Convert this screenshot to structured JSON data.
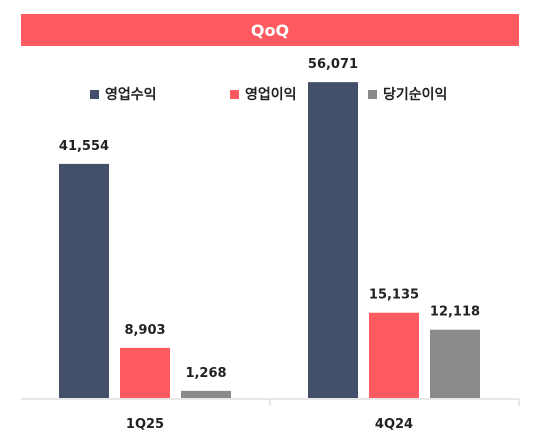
{
  "chart_data": {
    "type": "bar",
    "title": "QoQ",
    "categories": [
      "1Q25",
      "4Q24"
    ],
    "series": [
      {
        "name": "영업수익",
        "color": "#44506a",
        "values": [
          41554,
          56071
        ],
        "labels": [
          "41,554",
          "56,071"
        ]
      },
      {
        "name": "영업이익",
        "color": "#ff5a5f",
        "values": [
          8903,
          15135
        ],
        "labels": [
          "8,903",
          "15,135"
        ]
      },
      {
        "name": "당기순이익",
        "color": "#8a8a8a",
        "values": [
          1268,
          12118
        ],
        "labels": [
          "1,268",
          "12,118"
        ]
      }
    ],
    "ylim": [
      0,
      60000
    ],
    "grid": false,
    "legend_position": "top-center",
    "title_background": "#ff5a5f"
  }
}
